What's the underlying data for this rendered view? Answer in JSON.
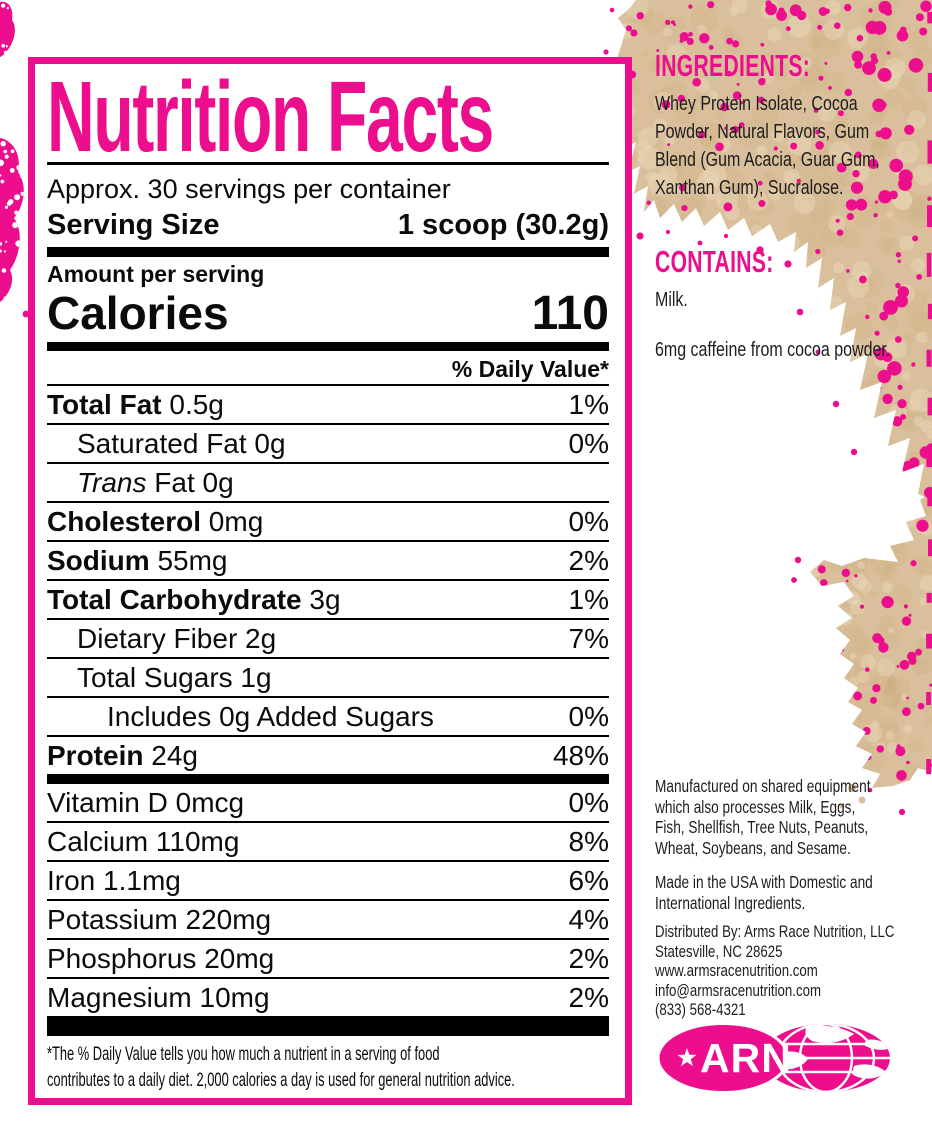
{
  "colors": {
    "pink": "#EC0E8C",
    "tan": "#D9BF9B",
    "tan_dark": "#C7A779",
    "tan_light": "#EADAB9",
    "text_black": "#0b0b0b"
  },
  "label": {
    "title": "Nutrition Facts",
    "servings_line": "Approx. 30 servings per container",
    "serving_size_label": "Serving Size",
    "serving_size_value": "1 scoop (30.2g)",
    "amount_per_serving": "Amount per serving",
    "calories_label": "Calories",
    "calories_value": "110",
    "daily_value_header": "% Daily Value*",
    "rows": [
      {
        "name_bold": "Total Fat",
        "name_plain": " 0.5g",
        "dv": "1%",
        "indent": 0
      },
      {
        "name_plain": "Saturated Fat 0g",
        "dv": "0%",
        "indent": 1
      },
      {
        "name_italic": "Trans",
        "name_plain": " Fat 0g",
        "dv": "",
        "indent": 1
      },
      {
        "name_bold": "Cholesterol",
        "name_plain": " 0mg",
        "dv": "0%",
        "indent": 0
      },
      {
        "name_bold": "Sodium",
        "name_plain": " 55mg",
        "dv": "2%",
        "indent": 0
      },
      {
        "name_bold": "Total Carbohydrate",
        "name_plain": " 3g",
        "dv": "1%",
        "indent": 0
      },
      {
        "name_plain": "Dietary Fiber 2g",
        "dv": "7%",
        "indent": 1
      },
      {
        "name_plain": "Total Sugars 1g",
        "dv": "",
        "indent": 1
      },
      {
        "name_plain": "Includes 0g Added Sugars",
        "dv": "0%",
        "indent": 2
      },
      {
        "name_bold": "Protein",
        "name_plain": " 24g",
        "dv": "48%",
        "indent": 0,
        "bar_after": true
      },
      {
        "name_plain": "Vitamin D 0mcg",
        "dv": "0%",
        "indent": 0
      },
      {
        "name_plain": "Calcium 110mg",
        "dv": "8%",
        "indent": 0
      },
      {
        "name_plain": "Iron 1.1mg",
        "dv": "6%",
        "indent": 0
      },
      {
        "name_plain": "Potassium 220mg",
        "dv": "4%",
        "indent": 0
      },
      {
        "name_plain": "Phosphorus 20mg",
        "dv": "2%",
        "indent": 0
      },
      {
        "name_plain": "Magnesium 10mg",
        "dv": "2%",
        "indent": 0,
        "bar_after": true
      }
    ],
    "footnote_lines": [
      "*The % Daily Value tells you how much a nutrient in a serving of food",
      "contributes to a daily diet. 2,000 calories a day is used for general nutrition advice."
    ]
  },
  "ingredients": {
    "heading": "INGREDIENTS:",
    "lines": [
      "Whey Protein Isolate, Cocoa",
      "Powder, Natural Flavors, Gum",
      "Blend (Gum Acacia, Guar Gum,",
      "Xanthan Gum), Sucralose."
    ]
  },
  "contains": {
    "heading": "CONTAINS:",
    "milk": "Milk.",
    "caffeine": "6mg caffeine from cocoa powder."
  },
  "manufacturing": {
    "shared_equipment_lines": [
      "Manufactured on shared equipment",
      "which also processes Milk, Eggs,",
      "Fish, Shellfish, Tree Nuts, Peanuts,",
      "Wheat, Soybeans, and Sesame."
    ],
    "made_in_lines": [
      "Made in the USA with Domestic and",
      "International Ingredients."
    ]
  },
  "distributor": {
    "lines": [
      "Distributed By: Arms Race Nutrition, LLC",
      "Statesville, NC 28625",
      "www.armsracenutrition.com",
      "info@armsracenutrition.com",
      "(833) 568-4321"
    ]
  },
  "logo": {
    "text": "ARN"
  }
}
